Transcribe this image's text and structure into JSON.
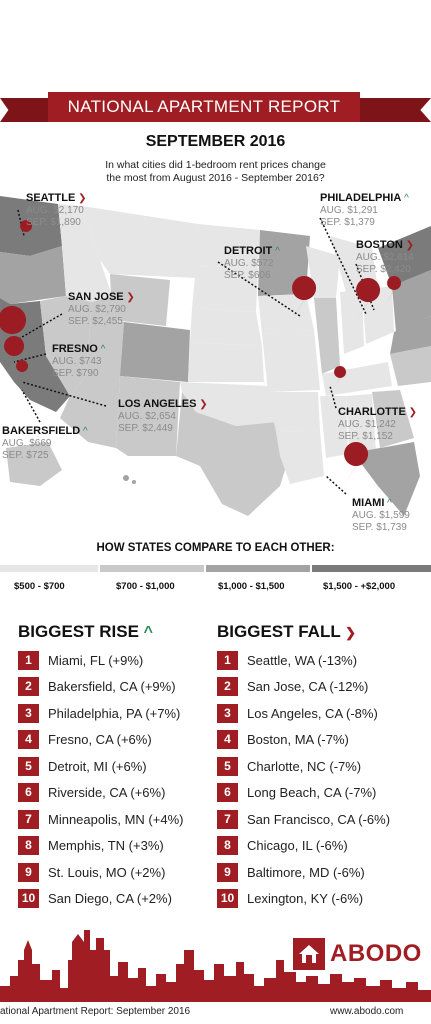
{
  "header": {
    "title": "NATIONAL APARTMENT REPORT",
    "subtitle": "SEPTEMBER 2016",
    "question_line1": "In what cities did 1-bedroom rent prices change",
    "question_line2": "the most from August 2016 - September 2016?"
  },
  "cities": [
    {
      "name": "SEATTLE",
      "dir": "down",
      "aug": "AUG. $2,170",
      "sep": "SEP. $1,890"
    },
    {
      "name": "PHILADELPHIA",
      "dir": "up",
      "aug": "AUG. $1,291",
      "sep": "SEP. $1,379"
    },
    {
      "name": "DETROIT",
      "dir": "up",
      "aug": "AUG. $572",
      "sep": "SEP. $606"
    },
    {
      "name": "BOSTON",
      "dir": "down",
      "aug": "AUG. $2,614",
      "sep": "SEP. $2,420"
    },
    {
      "name": "SAN JOSE",
      "dir": "down",
      "aug": "AUG. $2,790",
      "sep": "SEP. $2,455"
    },
    {
      "name": "FRESNO",
      "dir": "up",
      "aug": "AUG. $743",
      "sep": "SEP. $790"
    },
    {
      "name": "LOS ANGELES",
      "dir": "down",
      "aug": "AUG. $2,654",
      "sep": "SEP. $2,449"
    },
    {
      "name": "BAKERSFIELD",
      "dir": "up",
      "aug": "AUG. $669",
      "sep": "SEP. $725"
    },
    {
      "name": "CHARLOTTE",
      "dir": "down",
      "aug": "AUG. $1,242",
      "sep": "SEP. $1,152"
    },
    {
      "name": "MIAMI",
      "dir": "up",
      "aug": "AUG. $1,599",
      "sep": "SEP. $1,739"
    }
  ],
  "compare": {
    "title": "HOW STATES COMPARE TO EACH OTHER:",
    "ranges": [
      {
        "label": "$500 - $700",
        "color": "#e6e6e6"
      },
      {
        "label": "$700 - $1,000",
        "color": "#c9c9c9"
      },
      {
        "label": "$1,000 - $1,500",
        "color": "#a3a3a3"
      },
      {
        "label": "$1,500 - +$2,000",
        "color": "#7b7b7b"
      }
    ]
  },
  "rise": {
    "title": "BIGGEST RISE",
    "items": [
      {
        "rank": "1",
        "text": "Miami, FL (+9%)"
      },
      {
        "rank": "2",
        "text": "Bakersfield, CA (+9%)"
      },
      {
        "rank": "3",
        "text": "Philadelphia, PA (+7%)"
      },
      {
        "rank": "4",
        "text": "Fresno, CA (+6%)"
      },
      {
        "rank": "5",
        "text": "Detroit, MI (+6%)"
      },
      {
        "rank": "6",
        "text": "Riverside, CA (+6%)"
      },
      {
        "rank": "7",
        "text": "Minneapolis, MN (+4%)"
      },
      {
        "rank": "8",
        "text": "Memphis, TN (+3%)"
      },
      {
        "rank": "9",
        "text": "St. Louis, MO (+2%)"
      },
      {
        "rank": "10",
        "text": "San Diego, CA (+2%)"
      }
    ]
  },
  "fall": {
    "title": "BIGGEST FALL",
    "items": [
      {
        "rank": "1",
        "text": "Seattle, WA (-13%)"
      },
      {
        "rank": "2",
        "text": "San Jose, CA (-12%)"
      },
      {
        "rank": "3",
        "text": "Los Angeles, CA (-8%)"
      },
      {
        "rank": "4",
        "text": "Boston, MA (-7%)"
      },
      {
        "rank": "5",
        "text": "Charlotte, NC (-7%)"
      },
      {
        "rank": "6",
        "text": "Long Beach, CA (-7%)"
      },
      {
        "rank": "7",
        "text": "San Francisco, CA (-6%)"
      },
      {
        "rank": "8",
        "text": "Chicago, IL (-6%)"
      },
      {
        "rank": "9",
        "text": "Baltimore, MD (-6%)"
      },
      {
        "rank": "10",
        "text": "Lexington, KY (-6%)"
      }
    ]
  },
  "footer": {
    "logo": "ABODO",
    "left_text": "ational Apartment Report: September 2016",
    "right_text": "www.abodo.com"
  },
  "colors": {
    "brand": "#a01e23",
    "up": "#2e8b57",
    "down": "#a01e23"
  },
  "icons": {
    "up": "chevron-up-icon",
    "down": "chevron-down-icon",
    "pin": "map-pin-icon",
    "logo": "house-icon"
  }
}
